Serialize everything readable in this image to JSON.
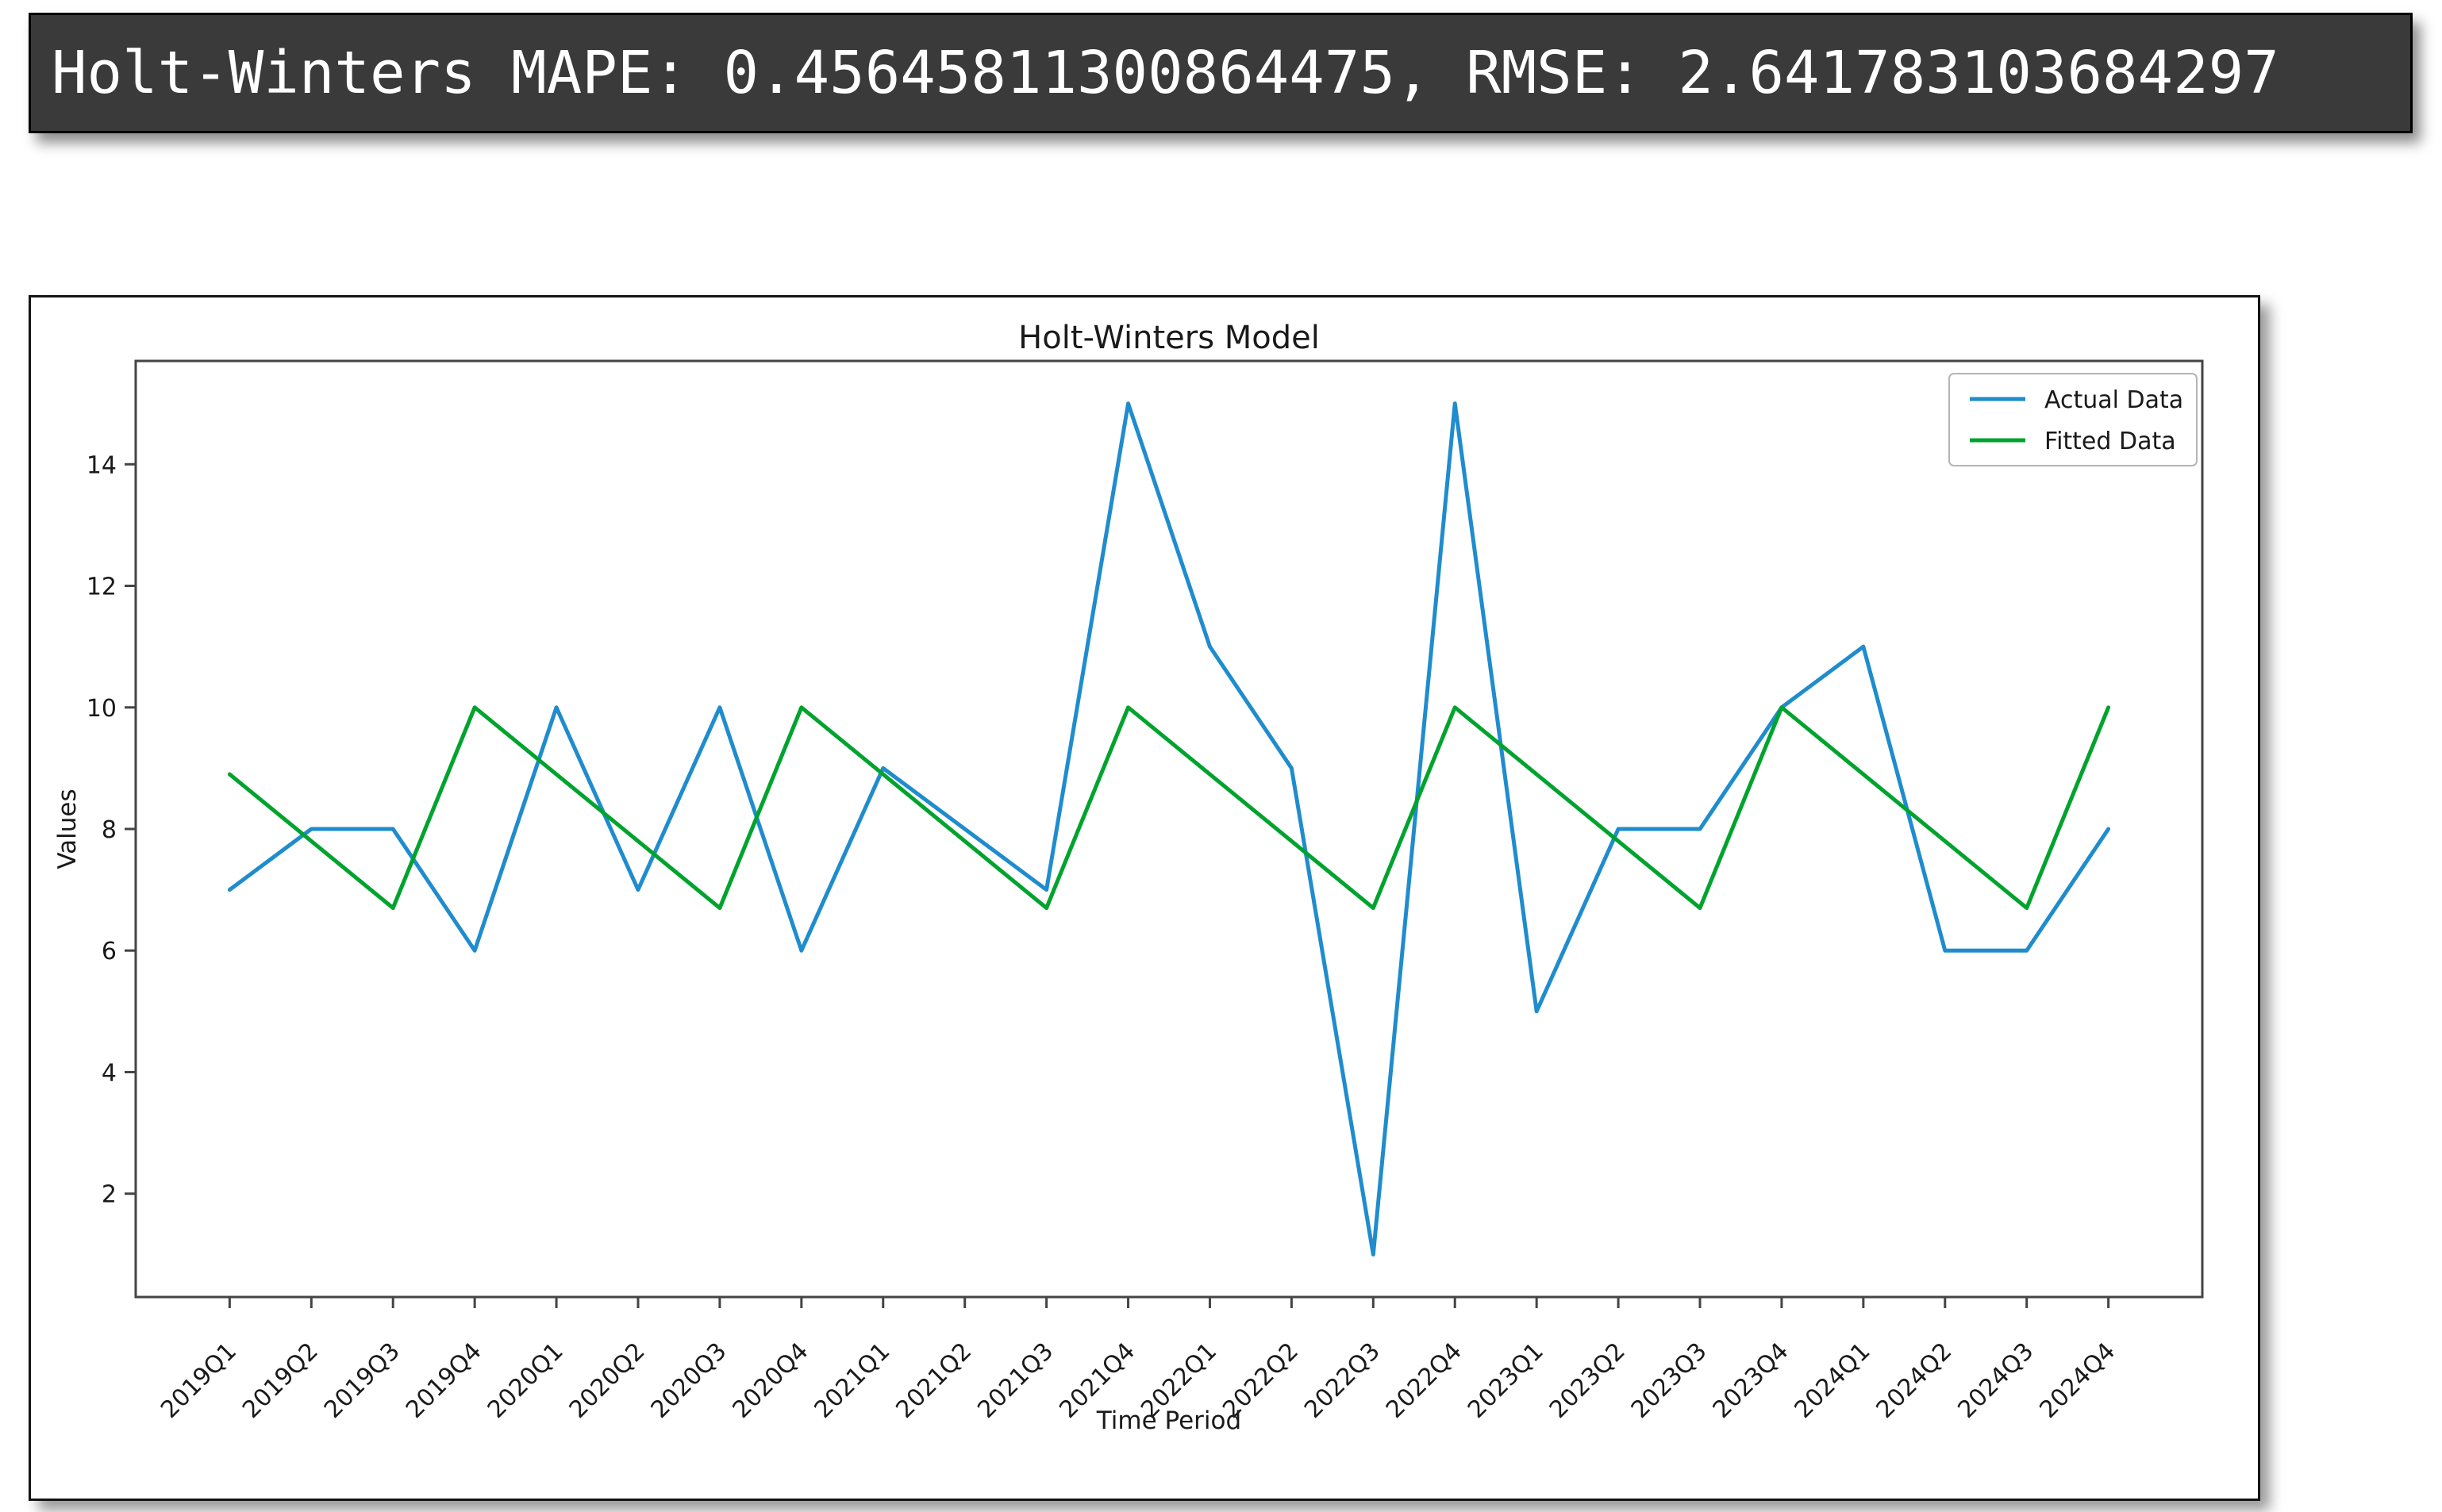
{
  "console": {
    "text": "Holt-Winters MAPE: 0.45645811300864475, RMSE: 2.641783103684297"
  },
  "chart_data": {
    "type": "line",
    "title": "Holt-Winters Model",
    "xlabel": "Time Period",
    "ylabel": "Values",
    "categories": [
      "2019Q1",
      "2019Q2",
      "2019Q3",
      "2019Q4",
      "2020Q1",
      "2020Q2",
      "2020Q3",
      "2020Q4",
      "2021Q1",
      "2021Q2",
      "2021Q3",
      "2021Q4",
      "2022Q1",
      "2022Q2",
      "2022Q3",
      "2022Q4",
      "2023Q1",
      "2023Q2",
      "2023Q3",
      "2023Q4",
      "2024Q1",
      "2024Q2",
      "2024Q3",
      "2024Q4"
    ],
    "series": [
      {
        "name": "Actual Data",
        "color": "#1f8ccd",
        "values": [
          7,
          8,
          8,
          6,
          10,
          7,
          10,
          6,
          9,
          8,
          7,
          15,
          11,
          9,
          1,
          15,
          5,
          8,
          8,
          10,
          11,
          6,
          6,
          8
        ]
      },
      {
        "name": "Fitted Data",
        "color": "#00a32e",
        "values": [
          8.9,
          7.8,
          6.7,
          10,
          8.9,
          7.8,
          6.7,
          10,
          8.9,
          7.8,
          6.7,
          10,
          8.9,
          7.8,
          6.7,
          10,
          8.9,
          7.8,
          6.7,
          10,
          8.9,
          7.8,
          6.7,
          10
        ]
      }
    ],
    "ylim": [
      0.3,
      15.7
    ],
    "yticks": [
      2,
      4,
      6,
      8,
      10,
      12,
      14
    ],
    "xtick_rotation": 45,
    "legend_position": "upper right",
    "grid": false
  }
}
